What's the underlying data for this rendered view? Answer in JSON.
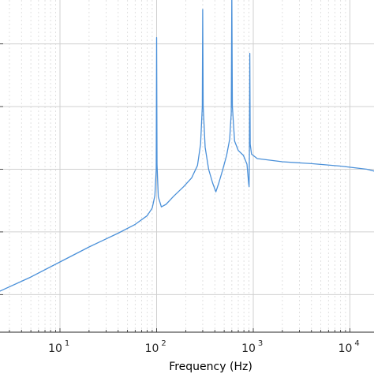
{
  "chart_data": {
    "type": "line",
    "title": "",
    "xlabel": "Frequency  (Hz)",
    "ylabel": "",
    "x_scale": "log",
    "xlim": [
      2,
      30000
    ],
    "ylim": [
      -2.6,
      2.6
    ],
    "grid": "on",
    "x_tick_labels": [
      {
        "base": "10",
        "exp": "1",
        "value": 10
      },
      {
        "base": "10",
        "exp": "2",
        "value": 100
      },
      {
        "base": "10",
        "exp": "3",
        "value": 1000
      },
      {
        "base": "10",
        "exp": "4",
        "value": 10000
      }
    ],
    "y_gridlines": [
      -2,
      -1,
      0,
      1,
      2
    ],
    "series": [
      {
        "color": "#4a90d9",
        "points": [
          [
            2,
            -2.0
          ],
          [
            5,
            -1.72
          ],
          [
            10,
            -1.48
          ],
          [
            20,
            -1.24
          ],
          [
            40,
            -1.02
          ],
          [
            60,
            -0.88
          ],
          [
            80,
            -0.74
          ],
          [
            90,
            -0.62
          ],
          [
            96,
            -0.42
          ],
          [
            99,
            0.0
          ],
          [
            100,
            2.1
          ],
          [
            101,
            0.08
          ],
          [
            104,
            -0.44
          ],
          [
            112,
            -0.6
          ],
          [
            125,
            -0.56
          ],
          [
            150,
            -0.43
          ],
          [
            190,
            -0.28
          ],
          [
            230,
            -0.14
          ],
          [
            265,
            0.06
          ],
          [
            285,
            0.4
          ],
          [
            297,
            1.0
          ],
          [
            300,
            2.55
          ],
          [
            303,
            1.0
          ],
          [
            318,
            0.35
          ],
          [
            345,
            0.0
          ],
          [
            380,
            -0.22
          ],
          [
            410,
            -0.36
          ],
          [
            440,
            -0.22
          ],
          [
            480,
            -0.02
          ],
          [
            530,
            0.22
          ],
          [
            570,
            0.48
          ],
          [
            592,
            0.9
          ],
          [
            600,
            2.8
          ],
          [
            608,
            1.0
          ],
          [
            640,
            0.45
          ],
          [
            700,
            0.3
          ],
          [
            790,
            0.22
          ],
          [
            860,
            0.08
          ],
          [
            895,
            -0.22
          ],
          [
            905,
            -0.28
          ],
          [
            912,
            0.3
          ],
          [
            920,
            1.85
          ],
          [
            930,
            0.4
          ],
          [
            960,
            0.24
          ],
          [
            1100,
            0.17
          ],
          [
            2000,
            0.12
          ],
          [
            4000,
            0.09
          ],
          [
            8000,
            0.05
          ],
          [
            15000,
            0.0
          ],
          [
            30000,
            -0.12
          ]
        ]
      }
    ]
  }
}
